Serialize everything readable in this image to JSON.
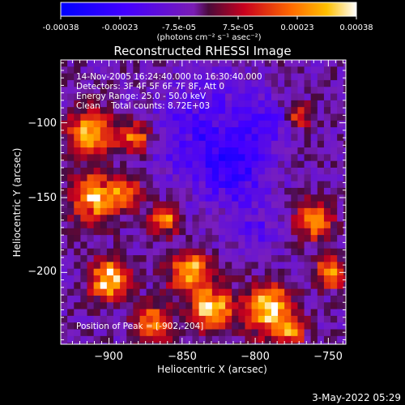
{
  "colorbar": {
    "ticks": [
      "-0.00038",
      "-0.00023",
      "-7.5e-05",
      "7.5e-05",
      "0.00023",
      "0.00038"
    ],
    "unit_label": "(photons cm⁻² s⁻¹ asec⁻²)",
    "range": [
      -0.00038,
      0.00038
    ]
  },
  "chart_data": {
    "type": "heatmap",
    "title": "Reconstructed RHESSI Image",
    "xlabel": "Heliocentric X (arcsec)",
    "ylabel": "Heliocentric Y (arcsec)",
    "xlim": [
      -933,
      -738
    ],
    "ylim": [
      -248,
      -58
    ],
    "x_ticks": [
      -900,
      -850,
      -800,
      -750
    ],
    "x_tick_labels": [
      "−900",
      "−850",
      "−800",
      "−750"
    ],
    "y_ticks": [
      -100,
      -150,
      -200
    ],
    "y_tick_labels": [
      "−100",
      "−150",
      "−200"
    ],
    "annotations": [
      "14-Nov-2005 16:24:40.000 to 16:30:40.000",
      "Detectors: 3F 4F 5F 6F 7F 8F, Att 0",
      "Energy Range: 25.0 - 50.0 keV",
      "Clean    Total counts: 8.72E+03"
    ],
    "peak_label": "Position of Peak = [-902,-204]",
    "peak": [
      -902,
      -204
    ],
    "colormap": "blue-purple-red-orange-white",
    "hot_regions": [
      {
        "x": -900,
        "y": -205,
        "radius": 12,
        "intensity": 1.0
      },
      {
        "x": -913,
        "y": -107,
        "radius": 14,
        "intensity": 0.85
      },
      {
        "x": -882,
        "y": -110,
        "radius": 10,
        "intensity": 0.7
      },
      {
        "x": -910,
        "y": -150,
        "radius": 16,
        "intensity": 0.75
      },
      {
        "x": -888,
        "y": -148,
        "radius": 10,
        "intensity": 0.6
      },
      {
        "x": -862,
        "y": -165,
        "radius": 10,
        "intensity": 0.6
      },
      {
        "x": -845,
        "y": -200,
        "radius": 14,
        "intensity": 0.75
      },
      {
        "x": -830,
        "y": -225,
        "radius": 14,
        "intensity": 0.8
      },
      {
        "x": -790,
        "y": -225,
        "radius": 16,
        "intensity": 0.85
      },
      {
        "x": -760,
        "y": -165,
        "radius": 12,
        "intensity": 0.7
      },
      {
        "x": -748,
        "y": -200,
        "radius": 10,
        "intensity": 0.7
      },
      {
        "x": -870,
        "y": -235,
        "radius": 12,
        "intensity": 0.65
      },
      {
        "x": -770,
        "y": -95,
        "radius": 8,
        "intensity": 0.5
      },
      {
        "x": -775,
        "y": -240,
        "radius": 8,
        "intensity": 0.6
      }
    ],
    "cold_regions": [
      {
        "x": -835,
        "y": -105,
        "radius": 35,
        "intensity": 0.8
      },
      {
        "x": -815,
        "y": -135,
        "radius": 25,
        "intensity": 0.8
      },
      {
        "x": -795,
        "y": -100,
        "radius": 18,
        "intensity": 0.6
      },
      {
        "x": -800,
        "y": -175,
        "radius": 16,
        "intensity": 0.5
      }
    ]
  },
  "footer": {
    "timestamp": "3-May-2022 05:29"
  }
}
